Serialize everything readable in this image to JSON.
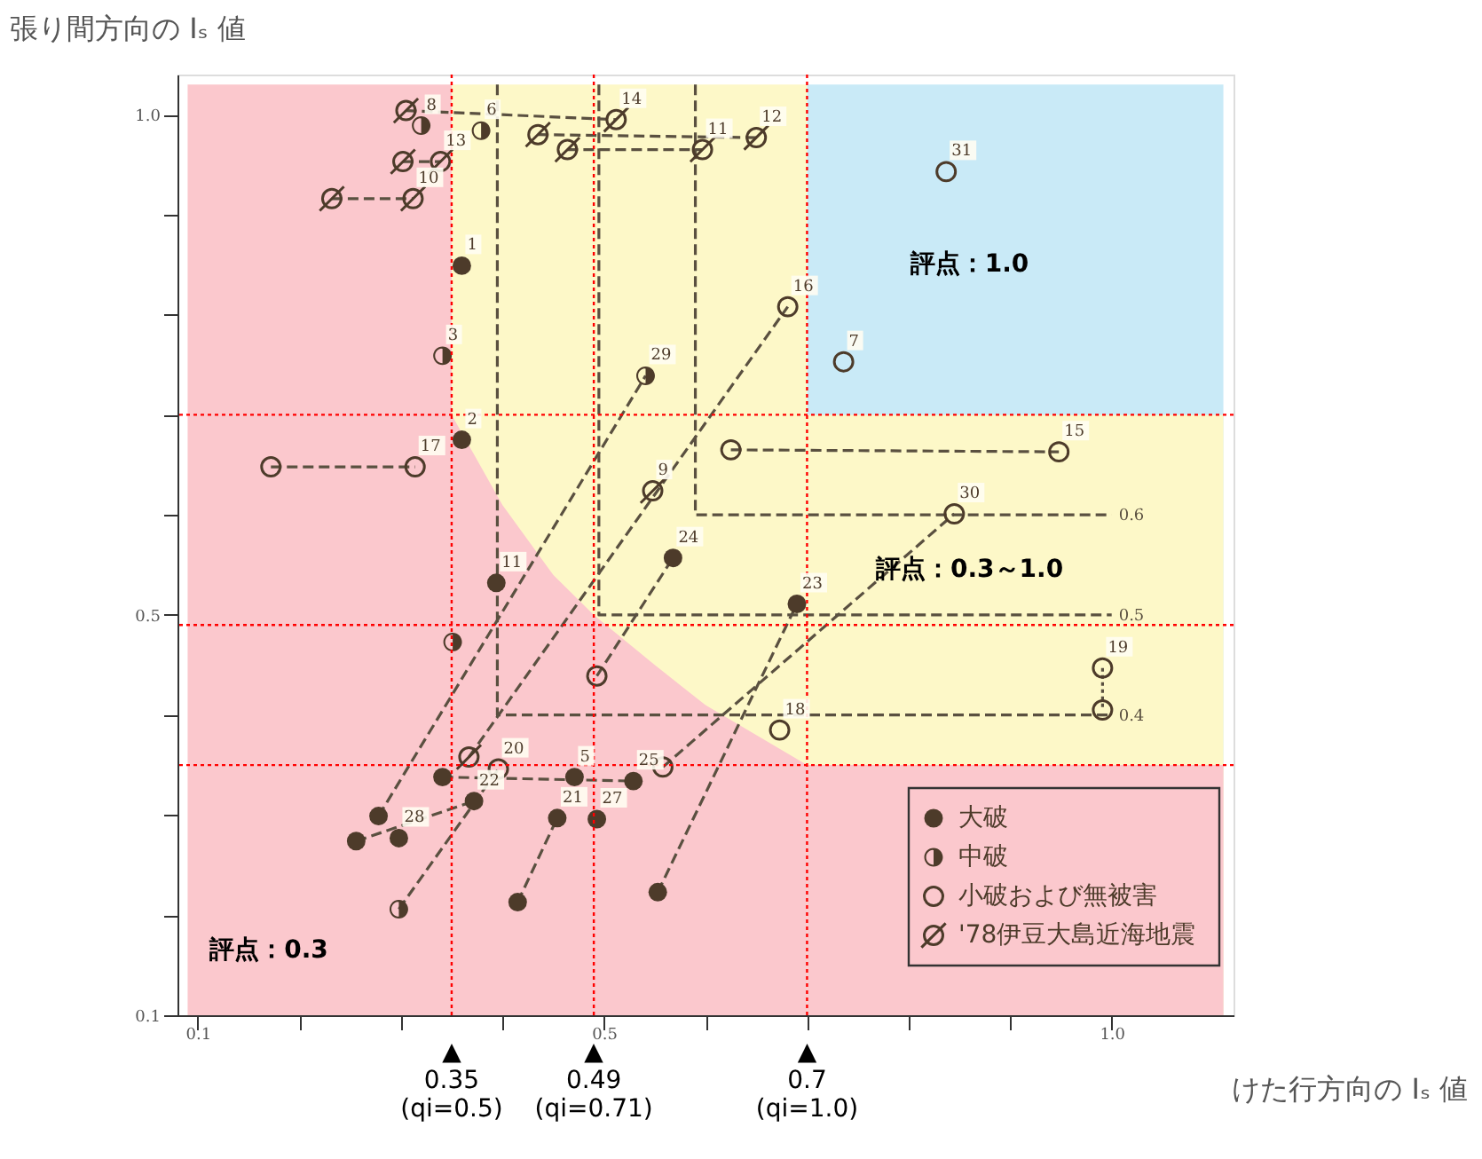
{
  "chart_data": {
    "type": "scatter",
    "xlabel": "けた行方向の Iₛ 値",
    "ylabel": "張り間方向の Iₛ 値",
    "xlim": [
      0.08,
      1.12
    ],
    "ylim": [
      0.1,
      1.04
    ],
    "xticks": [
      0.1,
      {
        "value": 0.2,
        "label": null
      },
      {
        "value": 0.3,
        "label": null
      },
      {
        "value": 0.4,
        "label": null
      },
      0.5,
      {
        "value": 0.6,
        "label": null
      },
      {
        "value": 0.7,
        "label": null
      },
      {
        "value": 0.8,
        "label": null
      },
      {
        "value": 0.9,
        "label": null
      },
      {
        "value": 1.0,
        "label": "1.0"
      }
    ],
    "yticks": [
      0.1,
      {
        "value": 0.2,
        "label": null
      },
      {
        "value": 0.3,
        "label": null
      },
      {
        "value": 0.4,
        "label": null
      },
      0.5,
      {
        "value": 0.6,
        "label": null
      },
      {
        "value": 0.7,
        "label": null
      },
      {
        "value": 0.8,
        "label": null
      },
      {
        "value": 0.9,
        "label": null
      },
      {
        "value": 1.0,
        "label": "1.0"
      }
    ],
    "grid": false,
    "legend": "bottom right",
    "series": [
      {
        "type": "area",
        "color": "#fbc8cd",
        "x": [
          0.09,
          0.35
        ],
        "values": [
          1.03,
          1.03
        ]
      },
      {
        "type": "area",
        "color": "#fbc8cd",
        "x": [
          0.35,
          0.4,
          0.45,
          0.49,
          0.55,
          0.6,
          0.65,
          0.7
        ],
        "values": [
          0.7,
          0.61,
          0.54,
          0.5,
          0.45,
          0.41,
          0.38,
          0.35
        ]
      },
      {
        "type": "area",
        "color": "#fbc8cd",
        "x": [
          0.7,
          1.11
        ],
        "values": [
          0.35,
          0.35
        ]
      },
      {
        "type": "area",
        "color": "#fdf8c8",
        "x": [
          0.7,
          1.11
        ],
        "values": [
          0.7,
          0.7
        ]
      },
      {
        "type": "area",
        "color": "#fdf8c8",
        "x": [
          0.35,
          0.7
        ],
        "values": [
          1.03,
          1.03
        ]
      },
      {
        "type": "area",
        "color": "#c9eaf7",
        "x": [
          0.7,
          1.11
        ],
        "values": [
          1.03,
          1.03
        ]
      },
      {
        "type": "line",
        "name": "0.6",
        "color": "#5a5040",
        "line_style": "dashed",
        "x": [
          0.59,
          0.59,
          1.0
        ],
        "values": [
          1.03,
          0.6,
          0.6
        ]
      },
      {
        "type": "line",
        "name": "0.5",
        "color": "#5a5040",
        "line_style": "dashed",
        "x": [
          0.495,
          0.495,
          1.0
        ],
        "values": [
          1.03,
          0.5,
          0.5
        ]
      },
      {
        "type": "line",
        "name": "0.4",
        "color": "#5a5040",
        "line_style": "dashed",
        "x": [
          0.395,
          0.395,
          1.0
        ],
        "values": [
          1.03,
          0.4,
          0.4
        ]
      },
      {
        "type": "line",
        "color": "#5a5040",
        "line_style": "dashed",
        "x": [
          0.305,
          0.512
        ],
        "values": [
          1.004,
          0.995
        ]
      },
      {
        "type": "line",
        "color": "#5a5040",
        "line_style": "dashed",
        "x": [
          0.435,
          0.65
        ],
        "values": [
          0.98,
          0.977
        ]
      },
      {
        "type": "line",
        "color": "#5a5040",
        "line_style": "dashed",
        "x": [
          0.464,
          0.597
        ],
        "values": [
          0.965,
          0.965
        ]
      },
      {
        "type": "line",
        "color": "#5a5040",
        "line_style": "dashed",
        "x": [
          0.302,
          0.339
        ],
        "values": [
          0.953,
          0.953
        ]
      },
      {
        "type": "line",
        "color": "#5a5040",
        "line_style": "dashed",
        "x": [
          0.232,
          0.312
        ],
        "values": [
          0.916,
          0.916
        ]
      },
      {
        "type": "line",
        "color": "#5a5040",
        "line_style": "dashed",
        "x": [
          0.172,
          0.314
        ],
        "values": [
          0.648,
          0.648
        ]
      },
      {
        "type": "line",
        "color": "#5a5040",
        "line_style": "dashed",
        "x": [
          0.625,
          0.948
        ],
        "values": [
          0.665,
          0.663
        ]
      },
      {
        "type": "line",
        "color": "#5a5040",
        "line_style": "dotted",
        "x": [
          0.991,
          0.991
        ],
        "values": [
          0.447,
          0.405
        ]
      },
      {
        "type": "line",
        "color": "#5a5040",
        "line_style": "dashed",
        "x": [
          0.256,
          0.372
        ],
        "values": [
          0.274,
          0.314
        ]
      },
      {
        "type": "line",
        "color": "#5a5040",
        "line_style": "dashed",
        "x": [
          0.278,
          0.541
        ],
        "values": [
          0.299,
          0.739
        ]
      },
      {
        "type": "line",
        "color": "#5a5040",
        "line_style": "dashed",
        "x": [
          0.298,
          0.396
        ],
        "values": [
          0.206,
          0.346
        ]
      },
      {
        "type": "line",
        "color": "#5a5040",
        "line_style": "dashed",
        "x": [
          0.341,
          0.529
        ],
        "values": [
          0.338,
          0.334
        ]
      },
      {
        "type": "line",
        "color": "#5a5040",
        "line_style": "dashed",
        "x": [
          0.367,
          0.681
        ],
        "values": [
          0.358,
          0.808
        ]
      },
      {
        "type": "line",
        "color": "#5a5040",
        "line_style": "dashed",
        "x": [
          0.415,
          0.454
        ],
        "values": [
          0.213,
          0.297
        ]
      },
      {
        "type": "line",
        "color": "#5a5040",
        "line_style": "dashed",
        "x": [
          0.493,
          0.568
        ],
        "values": [
          0.439,
          0.557
        ]
      },
      {
        "type": "line",
        "color": "#5a5040",
        "line_style": "dashed",
        "x": [
          0.553,
          0.69
        ],
        "values": [
          0.223,
          0.511
        ]
      },
      {
        "type": "line",
        "color": "#5a5040",
        "line_style": "dashed",
        "x": [
          0.558,
          0.845
        ],
        "values": [
          0.348,
          0.601
        ]
      },
      {
        "type": "scatter",
        "marker": "circle",
        "name": "大破",
        "color": "#4d3b2a",
        "x": [
          0.36,
          0.36,
          0.394,
          0.568,
          0.69,
          0.341,
          0.471,
          0.529,
          0.372,
          0.454,
          0.493,
          0.278,
          0.256,
          0.298,
          0.415,
          0.553
        ],
        "values": [
          0.849,
          0.675,
          0.532,
          0.557,
          0.511,
          0.338,
          0.338,
          0.334,
          0.314,
          0.297,
          0.296,
          0.299,
          0.274,
          0.277,
          0.213,
          0.223
        ]
      },
      {
        "type": "scatter",
        "marker": "circle",
        "name": "中破",
        "color": "#4d3b2a",
        "x": [
          0.32,
          0.379,
          0.341,
          0.541,
          0.351,
          0.298
        ],
        "values": [
          0.989,
          0.984,
          0.759,
          0.739,
          0.473,
          0.206
        ]
      },
      {
        "type": "scatter",
        "marker": "circle",
        "name": "小破および無被害",
        "color": "#4d3b2a",
        "x": [
          0.837,
          0.736,
          0.681,
          0.172,
          0.314,
          0.625,
          0.948,
          0.845,
          0.991,
          0.991,
          0.673,
          0.493,
          0.396,
          0.558
        ],
        "values": [
          0.943,
          0.753,
          0.808,
          0.648,
          0.648,
          0.665,
          0.663,
          0.601,
          0.447,
          0.405,
          0.385,
          0.439,
          0.346,
          0.348
        ]
      },
      {
        "type": "scatter",
        "name": "'78伊豆大島近海地震",
        "color": "#4d3b2a",
        "x": [
          0.305,
          0.512,
          0.435,
          0.464,
          0.597,
          0.65,
          0.302,
          0.339,
          0.232,
          0.312,
          0.548,
          0.367
        ],
        "values": [
          1.004,
          0.995,
          0.98,
          0.965,
          0.965,
          0.977,
          0.953,
          0.953,
          0.916,
          0.916,
          0.624,
          0.358
        ]
      }
    ],
    "ref_lines": [
      {
        "axis": "x",
        "value": 0.35,
        "label": "▲\n0.35\n(qi=0.5)",
        "color": "#ff0000",
        "line_style": "dotted"
      },
      {
        "axis": "x",
        "value": 0.49,
        "label": "▲\n0.49\n(qi=0.71)",
        "color": "#ff0000",
        "line_style": "dotted"
      },
      {
        "axis": "x",
        "value": 0.7,
        "label": "▲\n0.7\n(qi=1.0)",
        "color": "#ff0000",
        "line_style": "dotted"
      },
      {
        "axis": "y",
        "value": 0.35,
        "color": "#ff0000",
        "line_style": "dotted"
      },
      {
        "axis": "y",
        "value": 0.49,
        "color": "#ff0000",
        "line_style": "dotted"
      },
      {
        "axis": "y",
        "value": 0.7,
        "color": "#ff0000",
        "line_style": "dotted"
      }
    ],
    "annotations": [
      "評点：1.0",
      "評点：0.3～1.0",
      "評点：0.3",
      {
        "text": "1",
        "x": 0.36,
        "y": 0.849
      },
      {
        "text": "2",
        "x": 0.36,
        "y": 0.675
      },
      {
        "text": "11",
        "x": 0.394,
        "y": 0.532
      },
      {
        "text": "24",
        "x": 0.568,
        "y": 0.557
      },
      {
        "text": "23",
        "x": 0.69,
        "y": 0.511
      },
      {
        "text": "5",
        "x": 0.471,
        "y": 0.338
      },
      {
        "text": "25",
        "x": 0.529,
        "y": 0.334
      },
      {
        "text": "22",
        "x": 0.372,
        "y": 0.314
      },
      {
        "text": "21",
        "x": 0.454,
        "y": 0.297
      },
      {
        "text": "27",
        "x": 0.493,
        "y": 0.296
      },
      {
        "text": "28",
        "x": 0.298,
        "y": 0.277
      },
      {
        "text": "8",
        "x": 0.32,
        "y": 0.989
      },
      {
        "text": "6",
        "x": 0.379,
        "y": 0.984
      },
      {
        "text": "3",
        "x": 0.341,
        "y": 0.759
      },
      {
        "text": "29",
        "x": 0.541,
        "y": 0.739
      },
      {
        "text": "31",
        "x": 0.837,
        "y": 0.943
      },
      {
        "text": "7",
        "x": 0.736,
        "y": 0.753
      },
      {
        "text": "16",
        "x": 0.681,
        "y": 0.808
      },
      {
        "text": "17",
        "x": 0.314,
        "y": 0.648
      },
      {
        "text": "15",
        "x": 0.948,
        "y": 0.663
      },
      {
        "text": "30",
        "x": 0.845,
        "y": 0.601
      },
      {
        "text": "19",
        "x": 0.991,
        "y": 0.447
      },
      {
        "text": "18",
        "x": 0.673,
        "y": 0.385
      },
      {
        "text": "20",
        "x": 0.396,
        "y": 0.346
      },
      {
        "text": "14",
        "x": 0.512,
        "y": 0.995
      },
      {
        "text": "11",
        "x": 0.597,
        "y": 0.965
      },
      {
        "text": "12",
        "x": 0.65,
        "y": 0.977
      },
      {
        "text": "13",
        "x": 0.339,
        "y": 0.953
      },
      {
        "text": "10",
        "x": 0.312,
        "y": 0.916
      },
      {
        "text": "9",
        "x": 0.548,
        "y": 0.624
      }
    ]
  }
}
